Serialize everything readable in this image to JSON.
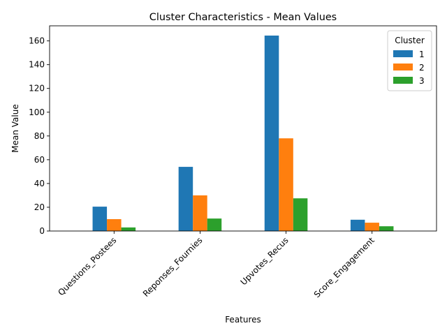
{
  "chart_data": {
    "type": "bar",
    "title": "Cluster Characteristics - Mean Values",
    "xlabel": "Features",
    "ylabel": "Mean Value",
    "categories": [
      "Questions_Postees",
      "Reponses_Fournies",
      "Upvotes_Recus",
      "Score_Engagement"
    ],
    "series": [
      {
        "name": "1",
        "color": "#1f77b4",
        "values": [
          20.5,
          54.0,
          164.5,
          9.5
        ]
      },
      {
        "name": "2",
        "color": "#ff7f0e",
        "values": [
          10.0,
          30.0,
          78.0,
          7.0
        ]
      },
      {
        "name": "3",
        "color": "#2ca02c",
        "values": [
          3.0,
          10.5,
          27.5,
          4.0
        ]
      }
    ],
    "yticks": [
      0,
      20,
      40,
      60,
      80,
      100,
      120,
      140,
      160
    ],
    "ylim": [
      0,
      172.7
    ],
    "legend": {
      "title": "Cluster",
      "position": "top-right"
    },
    "grid": false
  }
}
